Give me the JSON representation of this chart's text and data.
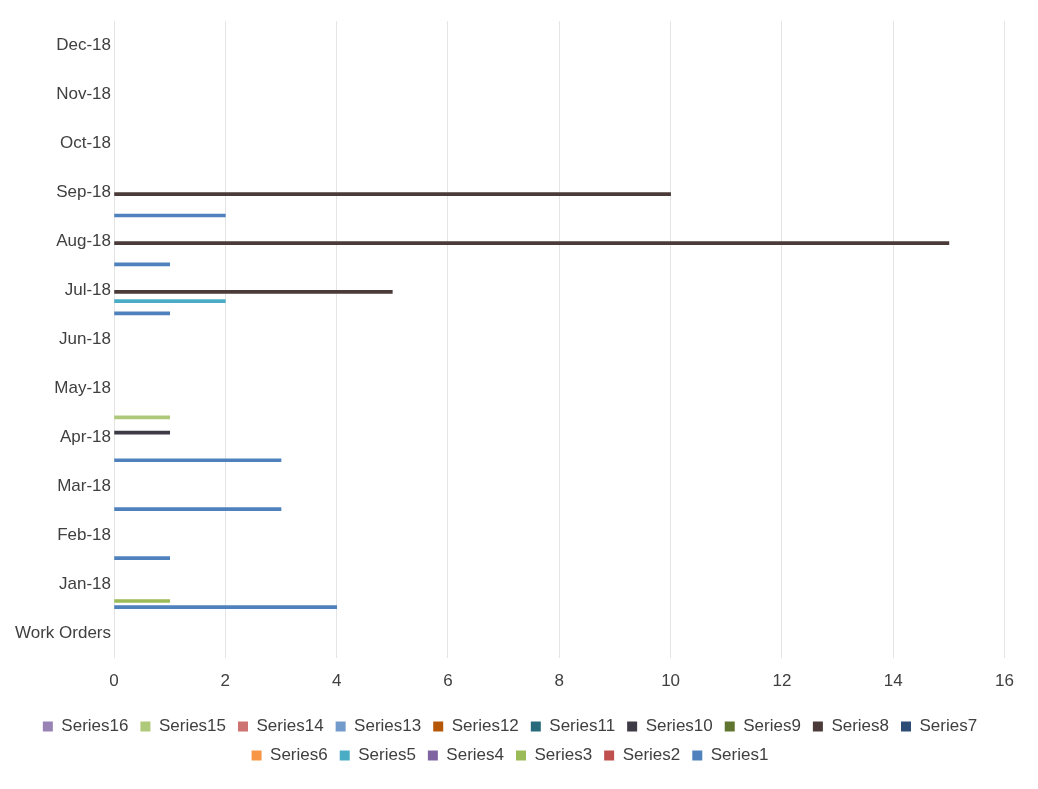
{
  "chart_data": {
    "type": "bar",
    "orientation": "horizontal",
    "categories": [
      "Dec-18",
      "Nov-18",
      "Oct-18",
      "Sep-18",
      "Aug-18",
      "Jul-18",
      "Jun-18",
      "May-18",
      "Apr-18",
      "Mar-18",
      "Feb-18",
      "Jan-18",
      "Work Orders"
    ],
    "xlim": [
      0,
      16
    ],
    "xticks": [
      0,
      2,
      4,
      6,
      8,
      10,
      12,
      14,
      16
    ],
    "grid": "x",
    "legend": "bottom",
    "series": [
      {
        "name": "Series1",
        "color": "#4f81bd",
        "values": [
          null,
          null,
          null,
          2,
          1,
          1,
          null,
          null,
          3,
          3,
          1,
          4,
          null
        ]
      },
      {
        "name": "Series2",
        "color": "#c0504d",
        "values": [
          null,
          null,
          null,
          null,
          null,
          null,
          null,
          null,
          null,
          null,
          null,
          null,
          null
        ]
      },
      {
        "name": "Series3",
        "color": "#9bbb59",
        "values": [
          null,
          null,
          null,
          null,
          null,
          null,
          null,
          null,
          null,
          null,
          null,
          1,
          null
        ]
      },
      {
        "name": "Series4",
        "color": "#8064a2",
        "values": [
          null,
          null,
          null,
          null,
          null,
          null,
          null,
          null,
          null,
          null,
          null,
          null,
          null
        ]
      },
      {
        "name": "Series5",
        "color": "#4bacc6",
        "values": [
          null,
          null,
          null,
          null,
          null,
          2,
          null,
          null,
          null,
          null,
          null,
          null,
          null
        ]
      },
      {
        "name": "Series6",
        "color": "#f79646",
        "values": [
          null,
          null,
          null,
          null,
          null,
          null,
          null,
          null,
          null,
          null,
          null,
          null,
          null
        ]
      },
      {
        "name": "Series7",
        "color": "#2c4d75",
        "values": [
          null,
          null,
          null,
          null,
          null,
          null,
          null,
          null,
          null,
          null,
          null,
          null,
          null
        ]
      },
      {
        "name": "Series8",
        "color": "#4a3a38",
        "values": [
          null,
          null,
          null,
          10,
          15,
          5,
          null,
          null,
          null,
          null,
          null,
          null,
          null
        ]
      },
      {
        "name": "Series9",
        "color": "#5f7530",
        "values": [
          null,
          null,
          null,
          null,
          null,
          null,
          null,
          null,
          null,
          null,
          null,
          null,
          null
        ]
      },
      {
        "name": "Series10",
        "color": "#3e3a46",
        "values": [
          null,
          null,
          null,
          null,
          null,
          null,
          null,
          null,
          1,
          null,
          null,
          null,
          null
        ]
      },
      {
        "name": "Series11",
        "color": "#276a7c",
        "values": [
          null,
          null,
          null,
          null,
          null,
          null,
          null,
          null,
          null,
          null,
          null,
          null,
          null
        ]
      },
      {
        "name": "Series12",
        "color": "#b65708",
        "values": [
          null,
          null,
          null,
          null,
          null,
          null,
          null,
          null,
          null,
          null,
          null,
          null,
          null
        ]
      },
      {
        "name": "Series13",
        "color": "#729aca",
        "values": [
          null,
          null,
          null,
          null,
          null,
          null,
          null,
          null,
          null,
          null,
          null,
          null,
          null
        ]
      },
      {
        "name": "Series14",
        "color": "#cd7371",
        "values": [
          null,
          null,
          null,
          null,
          null,
          null,
          null,
          null,
          null,
          null,
          null,
          null,
          null
        ]
      },
      {
        "name": "Series15",
        "color": "#afc97a",
        "values": [
          null,
          null,
          null,
          null,
          null,
          null,
          null,
          null,
          1,
          null,
          null,
          null,
          null
        ]
      },
      {
        "name": "Series16",
        "color": "#9983b5",
        "values": [
          null,
          null,
          null,
          null,
          null,
          null,
          null,
          null,
          null,
          null,
          null,
          null,
          null
        ]
      }
    ]
  }
}
